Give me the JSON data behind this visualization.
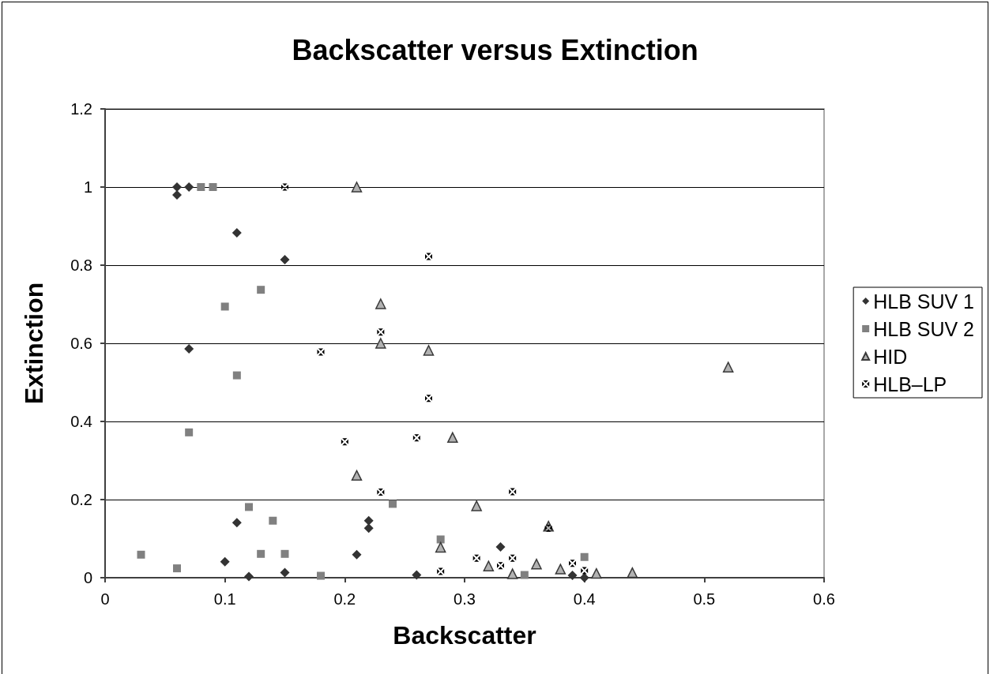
{
  "chart_data": {
    "type": "scatter",
    "title": "Backscatter versus Extinction",
    "xlabel": "Backscatter",
    "ylabel": "Extinction",
    "xlim": [
      0,
      0.6
    ],
    "xticks": [
      0,
      0.1,
      0.2,
      0.3,
      0.4,
      0.5,
      0.6
    ],
    "ylim": [
      0,
      1.2
    ],
    "yticks": [
      0,
      0.2,
      0.4,
      0.6,
      0.8,
      1,
      1.2
    ],
    "grid": "y",
    "legend": "right",
    "series": [
      {
        "name": "HLB SUV 1",
        "color": "#333333",
        "marker": "diamond",
        "x": [
          0.06,
          0.06,
          0.07,
          0.11,
          0.15,
          0.07,
          0.11,
          0.1,
          0.12,
          0.15,
          0.21,
          0.22,
          0.22,
          0.26,
          0.33,
          0.39,
          0.4
        ],
        "values": [
          1,
          0.98,
          1,
          0.883,
          0.814,
          0.586,
          0.141,
          0.041,
          0.003,
          0.013,
          0.059,
          0.146,
          0.127,
          0.007,
          0.079,
          0.006,
          0
        ]
      },
      {
        "name": "HLB SUV 2",
        "color": "#808080",
        "marker": "square",
        "x": [
          0.08,
          0.09,
          0.13,
          0.1,
          0.11,
          0.07,
          0.12,
          0.14,
          0.03,
          0.06,
          0.13,
          0.15,
          0.18,
          0.24,
          0.28,
          0.35,
          0.4
        ],
        "values": [
          1,
          1,
          0.737,
          0.694,
          0.518,
          0.372,
          0.181,
          0.146,
          0.059,
          0.024,
          0.061,
          0.061,
          0.005,
          0.189,
          0.098,
          0.007,
          0.053
        ]
      },
      {
        "name": "HID",
        "color": "#b2b2b2",
        "marker": "triangle",
        "x": [
          0.21,
          0.23,
          0.23,
          0.27,
          0.21,
          0.29,
          0.31,
          0.28,
          0.32,
          0.34,
          0.36,
          0.37,
          0.38,
          0.41,
          0.44,
          0.52
        ],
        "values": [
          1,
          0.701,
          0.6,
          0.582,
          0.262,
          0.359,
          0.184,
          0.078,
          0.03,
          0.01,
          0.035,
          0.132,
          0.022,
          0.011,
          0.013,
          0.539
        ]
      },
      {
        "name": "HLB–LP",
        "color": "#000000",
        "marker": "cross",
        "x": [
          0.15,
          0.27,
          0.23,
          0.27,
          0.18,
          0.2,
          0.26,
          0.23,
          0.34,
          0.37,
          0.28,
          0.31,
          0.33,
          0.34,
          0.39,
          0.4
        ],
        "values": [
          1,
          0.822,
          0.629,
          0.459,
          0.578,
          0.348,
          0.358,
          0.219,
          0.22,
          0.127,
          0.016,
          0.05,
          0.031,
          0.05,
          0.037,
          0.018
        ]
      }
    ]
  }
}
